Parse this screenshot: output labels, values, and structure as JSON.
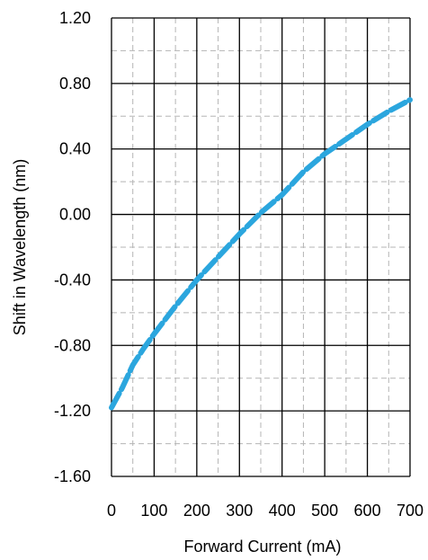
{
  "chart_data": {
    "type": "line",
    "title": "",
    "xlabel": "Forward Current  (mA)",
    "ylabel": "Shift in Wavelength (nm)",
    "xlim": [
      0,
      700
    ],
    "ylim": [
      -1.6,
      1.2
    ],
    "x_ticks": [
      "0",
      "100",
      "200",
      "300",
      "400",
      "500",
      "600",
      "700"
    ],
    "x_tick_values": [
      0,
      100,
      200,
      300,
      400,
      500,
      600,
      700
    ],
    "y_ticks": [
      "1.20",
      "0.80",
      "0.40",
      "0.00",
      "-0.40",
      "-0.80",
      "-1.20",
      "-1.60"
    ],
    "y_tick_values": [
      1.2,
      0.8,
      0.4,
      0.0,
      -0.4,
      -0.8,
      -1.2,
      -1.6
    ],
    "grid": {
      "major": true,
      "minor_dashed": true,
      "x_minor_step": 50,
      "y_minor_step": 0.2
    },
    "series": [
      {
        "line_color": "#2ba6de",
        "line_style": "dashed-thick",
        "x": [
          0,
          25,
          50,
          75,
          100,
          150,
          200,
          250,
          300,
          350,
          400,
          450,
          500,
          550,
          600,
          650,
          700
        ],
        "y": [
          -1.18,
          -1.06,
          -0.92,
          -0.82,
          -0.73,
          -0.56,
          -0.4,
          -0.26,
          -0.12,
          0.01,
          0.12,
          0.26,
          0.37,
          0.46,
          0.55,
          0.63,
          0.7
        ]
      }
    ]
  }
}
